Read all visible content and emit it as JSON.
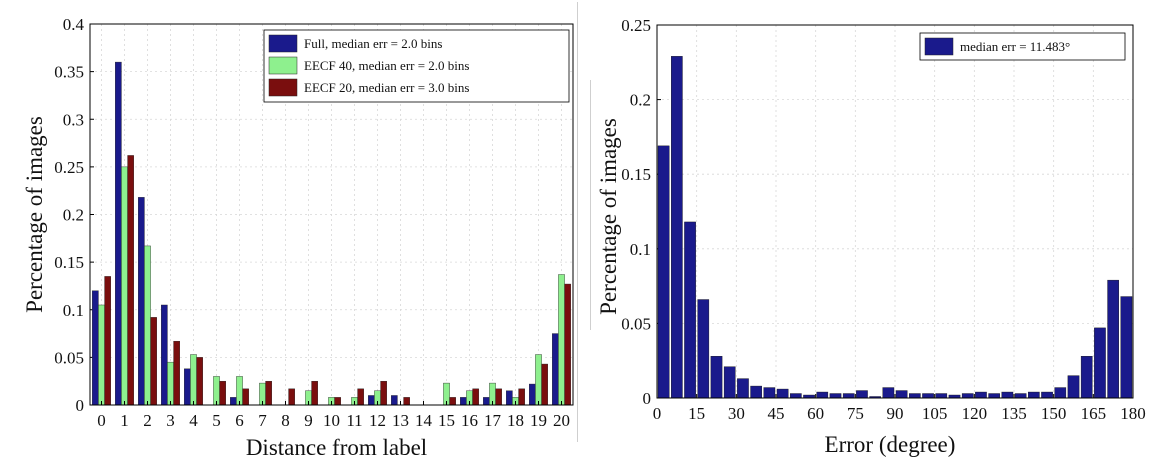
{
  "chart_data": [
    {
      "type": "bar",
      "title": "",
      "xlabel": "Distance from label",
      "ylabel": "Percentage of images",
      "ylim": [
        0,
        0.4
      ],
      "yticks": [
        "0",
        "0.05",
        "0.1",
        "0.15",
        "0.2",
        "0.25",
        "0.3",
        "0.35",
        "0.4"
      ],
      "categories": [
        "0",
        "1",
        "2",
        "3",
        "4",
        "5",
        "6",
        "7",
        "8",
        "9",
        "10",
        "11",
        "12",
        "13",
        "14",
        "15",
        "16",
        "17",
        "18",
        "19",
        "20"
      ],
      "grid": true,
      "legend_position": "top-right",
      "series": [
        {
          "name": "Full, median err = 2.0 bins",
          "color": "#1a1a8c",
          "values": [
            0.12,
            0.36,
            0.218,
            0.105,
            0.038,
            0,
            0.008,
            0,
            0,
            0,
            0,
            0,
            0.01,
            0.01,
            0,
            0,
            0.008,
            0.008,
            0.015,
            0.022,
            0.075
          ]
        },
        {
          "name": "EECF 40, median err = 2.0 bins",
          "color": "#8ef08e",
          "values": [
            0.105,
            0.25,
            0.167,
            0.045,
            0.053,
            0.03,
            0.03,
            0.023,
            0,
            0.015,
            0.008,
            0.008,
            0.015,
            0,
            0,
            0.023,
            0.015,
            0.023,
            0.008,
            0.053,
            0.137
          ]
        },
        {
          "name": "EECF 20, median err = 3.0 bins",
          "color": "#7a0e0e",
          "values": [
            0.135,
            0.262,
            0.092,
            0.067,
            0.05,
            0.025,
            0.017,
            0.025,
            0.017,
            0.025,
            0.008,
            0.017,
            0.025,
            0.008,
            0,
            0.008,
            0.017,
            0.017,
            0.017,
            0.043,
            0.127
          ]
        }
      ]
    },
    {
      "type": "bar",
      "title": "",
      "xlabel": "Error (degree)",
      "ylabel": "Percentage of images",
      "ylim": [
        0,
        0.25
      ],
      "xlim": [
        0,
        180
      ],
      "yticks": [
        "0",
        "0.05",
        "0.1",
        "0.15",
        "0.2",
        "0.25"
      ],
      "xticks": [
        "0",
        "15",
        "30",
        "45",
        "60",
        "75",
        "90",
        "105",
        "120",
        "135",
        "150",
        "165",
        "180"
      ],
      "grid": true,
      "legend_position": "top-right",
      "bin_width": 5,
      "series": [
        {
          "name": "median err = 11.483°",
          "color": "#1a1a8c",
          "values": [
            0.169,
            0.229,
            0.118,
            0.066,
            0.028,
            0.021,
            0.013,
            0.008,
            0.007,
            0.006,
            0.003,
            0.002,
            0.004,
            0.003,
            0.003,
            0.005,
            0.001,
            0.007,
            0.005,
            0.003,
            0.003,
            0.003,
            0.002,
            0.003,
            0.004,
            0.003,
            0.004,
            0.003,
            0.004,
            0.004,
            0.007,
            0.015,
            0.028,
            0.047,
            0.079,
            0.068
          ]
        }
      ]
    }
  ]
}
